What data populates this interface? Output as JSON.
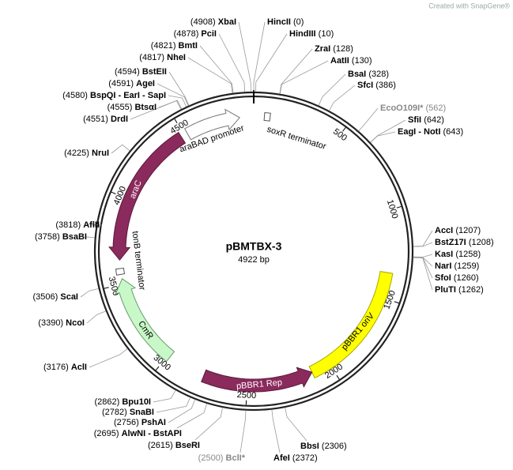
{
  "watermark": "Created with SnapGene®",
  "plasmid": {
    "name": "pBMTBX-3",
    "length": 4922,
    "size_label": "4922 bp"
  },
  "ticks": [
    500,
    1000,
    1500,
    2000,
    2500,
    3000,
    3500,
    4000,
    4500
  ],
  "features": [
    {
      "name": "araBAD promoter",
      "start": 4520,
      "end": 4840,
      "strand": 1,
      "color": "#ffffff",
      "stroke": "#777777"
    },
    {
      "name": "soxR terminator",
      "start": 62,
      "end": 95,
      "strand": 0,
      "color": "#ffffff",
      "stroke": "#555555"
    },
    {
      "name": "araC",
      "start": 3640,
      "end": 4480,
      "strand": -1,
      "color": "#8b2a5c",
      "stroke": "#5a1a3a"
    },
    {
      "name": "tonB terminator",
      "start": 3556,
      "end": 3590,
      "strand": 0,
      "color": "#ffffff",
      "stroke": "#555555"
    },
    {
      "name": "CmR",
      "start": 2985,
      "end": 3530,
      "strand": 1,
      "color": "#c8f8c8",
      "stroke": "#6a9a6a"
    },
    {
      "name": "pBBR1 oriV",
      "start": 1355,
      "end": 2110,
      "strand": 0,
      "color": "#ffff00",
      "stroke": "#a8a800"
    },
    {
      "name": "pBBR1 Rep",
      "start": 2110,
      "end": 2760,
      "strand": -1,
      "color": "#8b2a5c",
      "stroke": "#5a1a3a"
    }
  ],
  "enzymes": [
    {
      "name": "HincII",
      "pos": 0,
      "label": "(0)"
    },
    {
      "name": "HindIII",
      "pos": 10,
      "label": "(10)"
    },
    {
      "name": "ZraI",
      "pos": 128,
      "label": "(128)"
    },
    {
      "name": "AatII",
      "pos": 130,
      "label": "(130)"
    },
    {
      "name": "BsaI",
      "pos": 328,
      "label": "(328)"
    },
    {
      "name": "SfcI",
      "pos": 386,
      "label": "(386)"
    },
    {
      "name": "EcoO109I*",
      "pos": 562,
      "label": "(562)",
      "color": "#888888"
    },
    {
      "name": "SfiI",
      "pos": 642,
      "label": "(642)"
    },
    {
      "name": "EagI - NotI",
      "pos": 643,
      "label": "(643)"
    },
    {
      "name": "AccI",
      "pos": 1207,
      "label": "(1207)"
    },
    {
      "name": "BstZ17I",
      "pos": 1208,
      "label": "(1208)"
    },
    {
      "name": "KasI",
      "pos": 1258,
      "label": "(1258)"
    },
    {
      "name": "NarI",
      "pos": 1259,
      "label": "(1259)"
    },
    {
      "name": "SfoI",
      "pos": 1260,
      "label": "(1260)"
    },
    {
      "name": "PluTI",
      "pos": 1262,
      "label": "(1262)"
    },
    {
      "name": "BbsI",
      "pos": 2306,
      "label": "(2306)"
    },
    {
      "name": "AfeI",
      "pos": 2372,
      "label": "(2372)"
    },
    {
      "name": "BclI*",
      "pos": 2500,
      "label": "(2500)",
      "color": "#888888"
    },
    {
      "name": "BseRI",
      "pos": 2615,
      "label": "(2615)"
    },
    {
      "name": "AlwNI - BstAPI",
      "pos": 2695,
      "label": "(2695)"
    },
    {
      "name": "PshAI",
      "pos": 2756,
      "label": "(2756)"
    },
    {
      "name": "SnaBI",
      "pos": 2782,
      "label": "(2782)"
    },
    {
      "name": "Bpu10I",
      "pos": 2862,
      "label": "(2862)"
    },
    {
      "name": "AclI",
      "pos": 3176,
      "label": "(3176)"
    },
    {
      "name": "NcoI",
      "pos": 3390,
      "label": "(3390)"
    },
    {
      "name": "ScaI",
      "pos": 3506,
      "label": "(3506)"
    },
    {
      "name": "BsaBI",
      "pos": 3758,
      "label": "(3758)"
    },
    {
      "name": "AflII",
      "pos": 3818,
      "label": "(3818)"
    },
    {
      "name": "NruI",
      "pos": 4225,
      "label": "(4225)"
    },
    {
      "name": "DrdI",
      "pos": 4551,
      "label": "(4551)"
    },
    {
      "name": "BtsαI",
      "pos": 4555,
      "label": "(4555)"
    },
    {
      "name": "BspQI - EarI - SapI",
      "pos": 4580,
      "label": "(4580)"
    },
    {
      "name": "AgeI",
      "pos": 4591,
      "label": "(4591)"
    },
    {
      "name": "BstEII",
      "pos": 4594,
      "label": "(4594)"
    },
    {
      "name": "NheI",
      "pos": 4817,
      "label": "(4817)"
    },
    {
      "name": "BmtI",
      "pos": 4821,
      "label": "(4821)"
    },
    {
      "name": "PciI",
      "pos": 4878,
      "label": "(4878)"
    },
    {
      "name": "XbaI",
      "pos": 4908,
      "label": "(4908)"
    }
  ]
}
